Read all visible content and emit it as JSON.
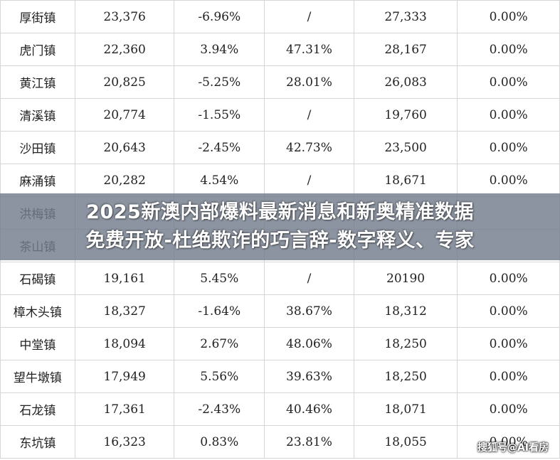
{
  "table": {
    "rows": [
      {
        "town": "厚街镇",
        "value": "23,376",
        "pct1": "-6.96%",
        "pct1_sign": "neg",
        "pct2": "/",
        "pct2_sign": "slash",
        "value2": "27,333",
        "share": "0.00%"
      },
      {
        "town": "虎门镇",
        "value": "22,360",
        "pct1": "3.94%",
        "pct1_sign": "pos",
        "pct2": "47.31%",
        "pct2_sign": "pos",
        "value2": "28,167",
        "share": "0.00%"
      },
      {
        "town": "黄江镇",
        "value": "20,825",
        "pct1": "-5.25%",
        "pct1_sign": "neg",
        "pct2": "28.01%",
        "pct2_sign": "pos",
        "value2": "26,083",
        "share": "0.00%"
      },
      {
        "town": "清溪镇",
        "value": "20,774",
        "pct1": "-1.55%",
        "pct1_sign": "neg",
        "pct2": "/",
        "pct2_sign": "slash",
        "value2": "19,760",
        "share": "0.00%"
      },
      {
        "town": "沙田镇",
        "value": "20,643",
        "pct1": "-2.45%",
        "pct1_sign": "neg",
        "pct2": "42.73%",
        "pct2_sign": "pos",
        "value2": "23,500",
        "share": "0.00%"
      },
      {
        "town": "麻涌镇",
        "value": "20,282",
        "pct1": "4.54%",
        "pct1_sign": "pos",
        "pct2": "/",
        "pct2_sign": "slash",
        "value2": "18,671",
        "share": "0.00%"
      },
      {
        "town": "洪梅镇",
        "value": "",
        "pct1": "",
        "pct1_sign": "pos",
        "pct2": "",
        "pct2_sign": "slash",
        "value2": "",
        "share": ""
      },
      {
        "town": "茶山镇",
        "value": "",
        "pct1": "",
        "pct1_sign": "pos",
        "pct2": "",
        "pct2_sign": "slash",
        "value2": "",
        "share": ""
      },
      {
        "town": "石碣镇",
        "value": "19,161",
        "pct1": "5.45%",
        "pct1_sign": "pos",
        "pct2": "/",
        "pct2_sign": "slash",
        "value2": "20190",
        "share": "0.00%"
      },
      {
        "town": "樟木头镇",
        "value": "18,327",
        "pct1": "-1.64%",
        "pct1_sign": "neg",
        "pct2": "38.67%",
        "pct2_sign": "pos",
        "value2": "18,312",
        "share": "0.00%"
      },
      {
        "town": "中堂镇",
        "value": "18,094",
        "pct1": "2.67%",
        "pct1_sign": "pos",
        "pct2": "48.06%",
        "pct2_sign": "pos",
        "value2": "18,250",
        "share": "0.00%"
      },
      {
        "town": "望牛墩镇",
        "value": "17,949",
        "pct1": "5.56%",
        "pct1_sign": "pos",
        "pct2": "39.63%",
        "pct2_sign": "pos",
        "value2": "18,250",
        "share": "0.00%"
      },
      {
        "town": "石龙镇",
        "value": "17,361",
        "pct1": "-2.43%",
        "pct1_sign": "neg",
        "pct2": "40.46%",
        "pct2_sign": "pos",
        "value2": "18,071",
        "share": "0.00%"
      },
      {
        "town": "东坑镇",
        "value": "16,323",
        "pct1": "0.83%",
        "pct1_sign": "pos",
        "pct2": "23.81%",
        "pct2_sign": "pos",
        "value2": "18,055",
        "share": "0.00%"
      }
    ]
  },
  "overlay": {
    "line1": "2025新澳内部爆料最新消息和新奥精准数据",
    "line2": "免费开放-杜绝欺诈的巧言辞-数字释义、专家"
  },
  "watermark": "搜狐号@AI看房",
  "colors": {
    "negative": "#2e9a4e",
    "positive": "#d23a3a",
    "grid": "#d6d6d6",
    "overlay": "#737d8c"
  }
}
